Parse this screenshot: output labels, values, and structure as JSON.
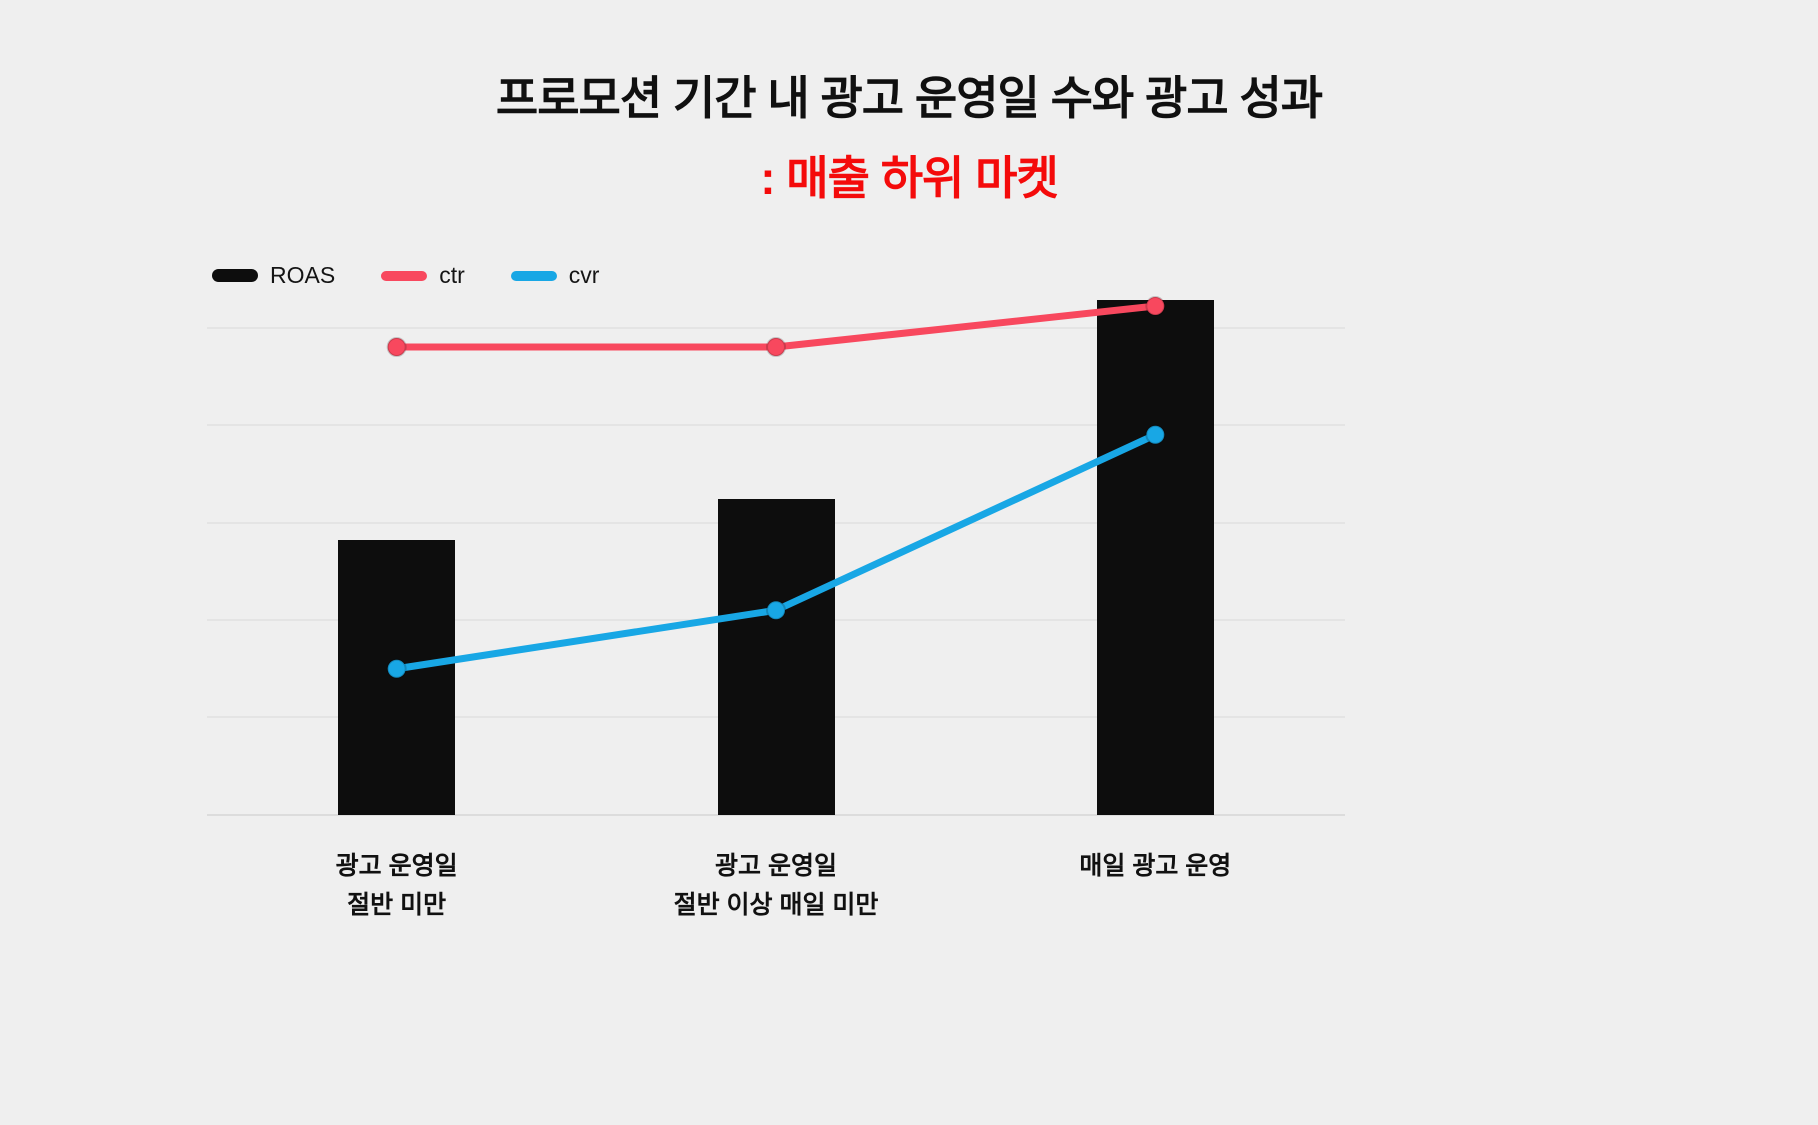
{
  "title": {
    "line1": "프로모션 기간 내 광고 운영일 수와 광고 성과",
    "line2": ": 매출 하위 마켓",
    "line2_color": "#f40b0b"
  },
  "legend": {
    "items": [
      {
        "label": "ROAS",
        "color": "#0d0d0d",
        "kind": "bar"
      },
      {
        "label": "ctr",
        "color": "#f8485e",
        "kind": "line"
      },
      {
        "label": "cvr",
        "color": "#18a7e5",
        "kind": "line"
      }
    ]
  },
  "chart_data": {
    "type": "bar",
    "subtype": "bar-and-line-combo",
    "categories": [
      [
        "광고 운영일",
        "절반 미만"
      ],
      [
        "광고 운영일",
        "절반 이상 매일 미만"
      ],
      [
        "매일 광고 운영"
      ]
    ],
    "series": [
      {
        "name": "ROAS",
        "type": "bar",
        "color": "#0d0d0d",
        "values": [
          47,
          54,
          88
        ]
      },
      {
        "name": "ctr",
        "type": "line",
        "color": "#f8485e",
        "values": [
          80,
          80,
          87
        ]
      },
      {
        "name": "cvr",
        "type": "line",
        "color": "#18a7e5",
        "values": [
          25,
          35,
          65
        ]
      }
    ],
    "ylim": [
      0,
      100
    ],
    "grid_values": [
      0,
      16.7,
      33.3,
      50,
      66.7,
      83.3
    ],
    "grid_on": true,
    "legend_position": "top-left",
    "xlabel": "",
    "ylabel": ""
  }
}
